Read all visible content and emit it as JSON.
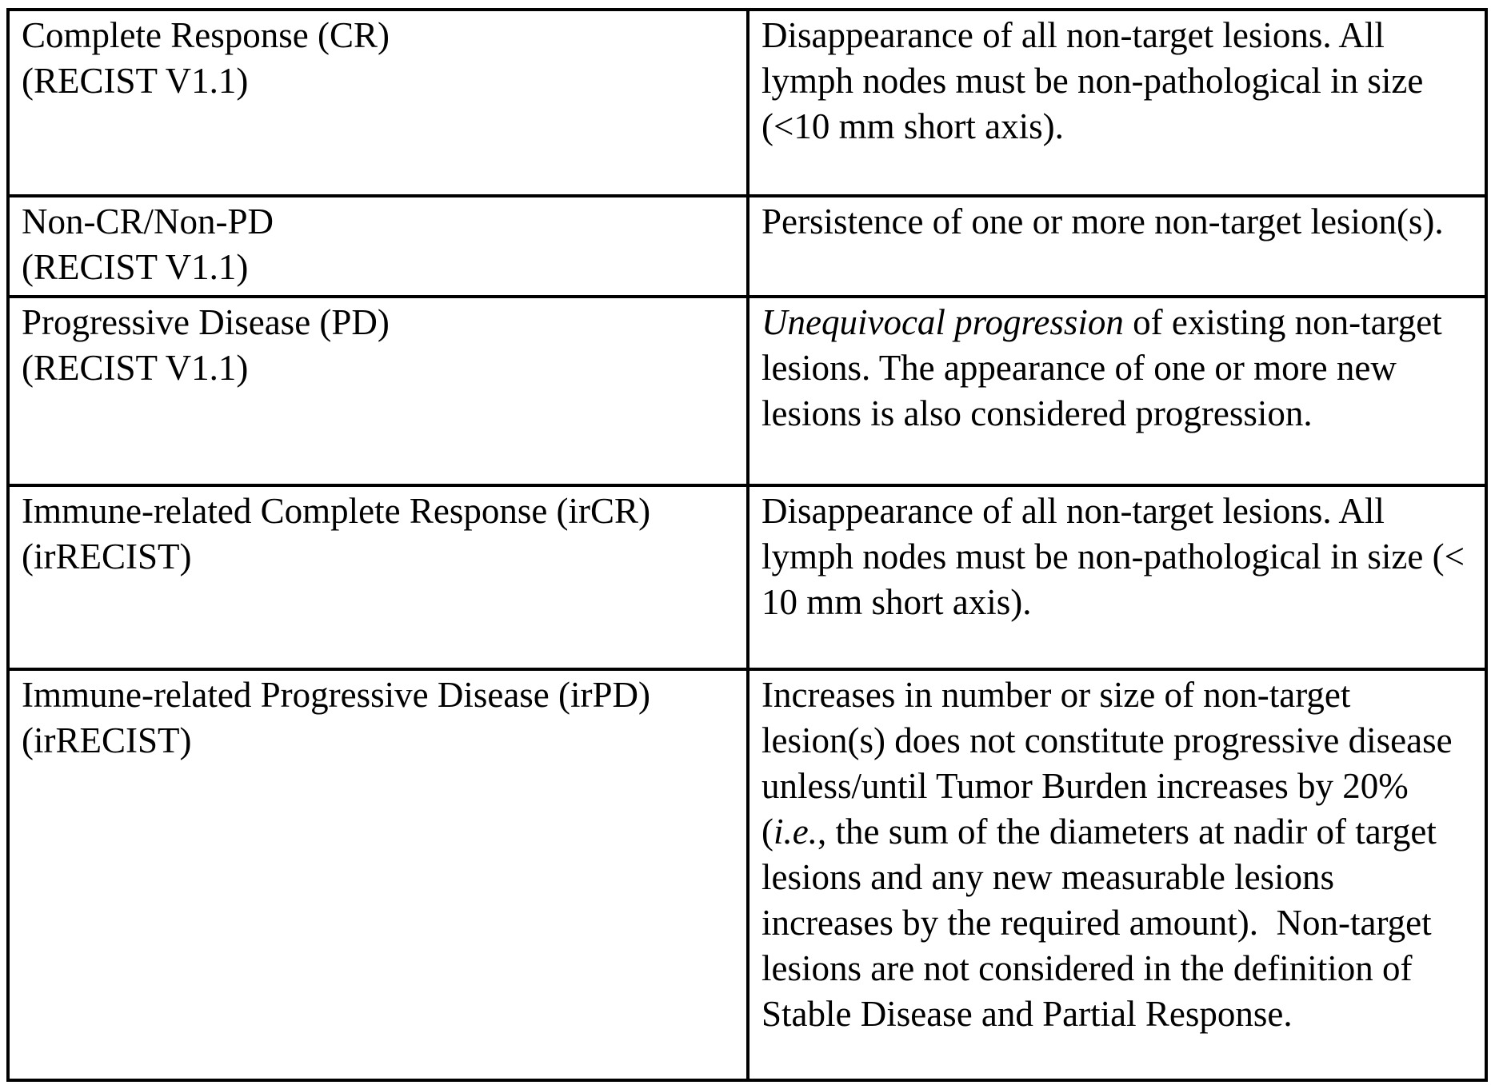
{
  "table": {
    "description": "Non-target lesion response criteria table (RECIST V1.1 vs irRECIST)",
    "rows": [
      {
        "label_lines": [
          "Complete Response (CR)",
          "(RECIST V1.1)"
        ],
        "definition": [
          {
            "text": "Disappearance of all non-target lesions. All lymph nodes must be non-pathological in size (<10 mm short axis).",
            "italic": false
          }
        ]
      },
      {
        "label_lines": [
          "Non-CR/Non-PD",
          "(RECIST V1.1)"
        ],
        "definition": [
          {
            "text": "Persistence of one or more non-target lesion(s).",
            "italic": false
          }
        ]
      },
      {
        "label_lines": [
          "Progressive Disease (PD)",
          "(RECIST V1.1)"
        ],
        "definition": [
          {
            "text": "Unequivocal progression",
            "italic": true
          },
          {
            "text": " of existing non-target lesions. The appearance of one or more new lesions is also considered progression.",
            "italic": false
          }
        ]
      },
      {
        "label_lines": [
          "Immune-related Complete Response (irCR)",
          "(irRECIST)"
        ],
        "definition": [
          {
            "text": "Disappearance of all non-target lesions. All lymph nodes must be non-pathological in size (< 10 mm short axis).",
            "italic": false
          }
        ]
      },
      {
        "label_lines": [
          "Immune-related Progressive Disease (irPD)",
          "(irRECIST)"
        ],
        "definition": [
          {
            "text": "Increases in number or size of non-target lesion(s) does not constitute progressive disease unless/until Tumor Burden increases by 20% (",
            "italic": false
          },
          {
            "text": "i.e.",
            "italic": true
          },
          {
            "text": ", the sum of the diameters at nadir of target lesions and any new measurable lesions increases by the required amount).  Non-target lesions are not considered in the definition of Stable Disease and Partial Response.",
            "italic": false
          }
        ]
      }
    ]
  },
  "colors": {
    "text": "#000000",
    "background": "#ffffff",
    "border": "#000000"
  }
}
